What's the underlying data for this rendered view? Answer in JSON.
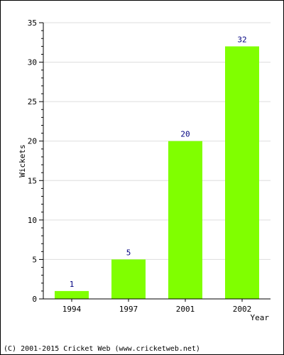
{
  "chart_data": {
    "type": "bar",
    "categories": [
      "1994",
      "1997",
      "2001",
      "2002"
    ],
    "values": [
      1,
      5,
      20,
      32
    ],
    "data_labels": [
      "1",
      "5",
      "20",
      "32"
    ],
    "xlabel": "Year",
    "ylabel": "Wickets",
    "ylim": [
      0,
      35
    ],
    "yticks": [
      0,
      5,
      10,
      15,
      20,
      25,
      30,
      35
    ],
    "grid": true,
    "bar_color": "#80ff00",
    "label_color": "#000080"
  },
  "footer": {
    "copyright": "(C) 2001-2015 Cricket Web (www.cricketweb.net)"
  }
}
